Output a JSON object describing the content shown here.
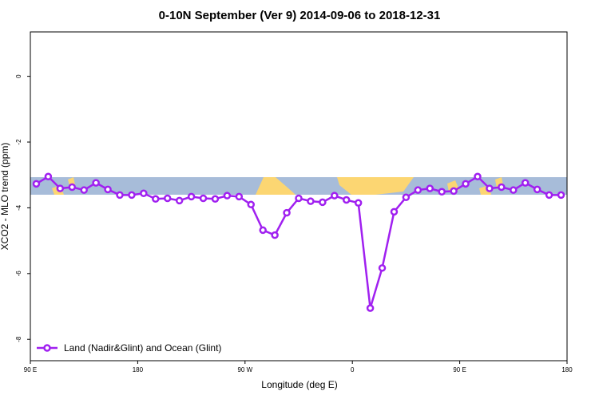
{
  "chart_data": {
    "type": "line",
    "title": "0-10N September (Ver 9)   2014-09-06 to 2018-12-31",
    "x_label": "Longitude (deg E)",
    "y_label": "XCO2 - MLO trend (ppm)",
    "xlim": [
      90,
      540
    ],
    "xticks": [
      {
        "value": 90,
        "label": "90 E"
      },
      180,
      {
        "value": 270,
        "label": "90 W"
      },
      {
        "value": 360,
        "label": "0"
      },
      {
        "value": 450,
        "label": "90 E"
      },
      {
        "value": 540,
        "label": "180"
      }
    ],
    "ylim": [
      -8.65,
      1.35
    ],
    "yticks": [
      0,
      -2,
      -4,
      -6,
      -8
    ],
    "legend": "bottom-left",
    "x": [
      95,
      105,
      115,
      125,
      135,
      145,
      155,
      165,
      175,
      185,
      195,
      205,
      215,
      225,
      235,
      245,
      255,
      265,
      275,
      285,
      295,
      305,
      315,
      325,
      335,
      345,
      355,
      365,
      375,
      385,
      395,
      405,
      415,
      425,
      435,
      445,
      455,
      465,
      475,
      485,
      495,
      505,
      515,
      525,
      535
    ],
    "series": [
      {
        "name": "Land (Nadir&Glint) and Ocean (Glint)",
        "color": "#a020f0",
        "values": [
          -3.27,
          -3.05,
          -3.41,
          -3.37,
          -3.46,
          -3.24,
          -3.44,
          -3.61,
          -3.61,
          -3.56,
          -3.73,
          -3.71,
          -3.78,
          -3.66,
          -3.71,
          -3.73,
          -3.63,
          -3.66,
          -3.9,
          -4.68,
          -4.83,
          -4.15,
          -3.71,
          -3.8,
          -3.83,
          -3.63,
          -3.76,
          -3.85,
          -7.05,
          -5.83,
          -4.12,
          -3.68,
          -3.46,
          -3.41,
          -3.51,
          -3.49,
          -3.27,
          -3.05,
          -3.41,
          -3.37,
          -3.46,
          -3.24,
          -3.44,
          -3.61,
          -3.61
        ]
      }
    ]
  }
}
